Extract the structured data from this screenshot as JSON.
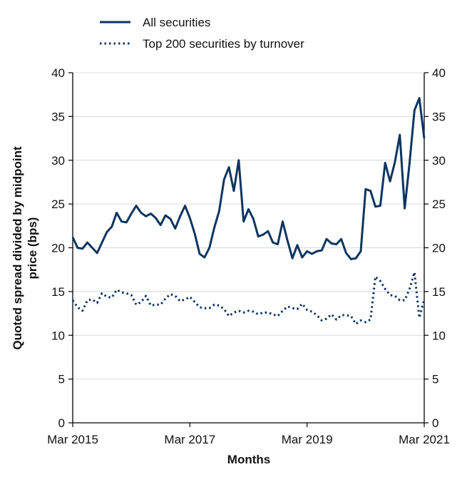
{
  "chart_data": {
    "type": "line",
    "xlabel": "Months",
    "ylabel_lines": [
      "Quoted spread divided by midpoint",
      "price (bps)"
    ],
    "ylim": [
      0,
      40
    ],
    "yticks": [
      0,
      5,
      10,
      15,
      20,
      25,
      30,
      35,
      40
    ],
    "xlim": [
      "2015-03",
      "2021-03"
    ],
    "xticks": [
      "Mar 2015",
      "Mar 2017",
      "Mar 2019",
      "Mar 2021"
    ],
    "grid": "horizontal",
    "right_axis": true,
    "legend_position": "top",
    "colors": {
      "line": "#0d3561",
      "grid": "#d9d9d9",
      "axis": "#000000"
    },
    "x": [
      "2015-03",
      "2015-04",
      "2015-05",
      "2015-06",
      "2015-07",
      "2015-08",
      "2015-09",
      "2015-10",
      "2015-11",
      "2015-12",
      "2016-01",
      "2016-02",
      "2016-03",
      "2016-04",
      "2016-05",
      "2016-06",
      "2016-07",
      "2016-08",
      "2016-09",
      "2016-10",
      "2016-11",
      "2016-12",
      "2017-01",
      "2017-02",
      "2017-03",
      "2017-04",
      "2017-05",
      "2017-06",
      "2017-07",
      "2017-08",
      "2017-09",
      "2017-10",
      "2017-11",
      "2017-12",
      "2018-01",
      "2018-02",
      "2018-03",
      "2018-04",
      "2018-05",
      "2018-06",
      "2018-07",
      "2018-08",
      "2018-09",
      "2018-10",
      "2018-11",
      "2018-12",
      "2019-01",
      "2019-02",
      "2019-03",
      "2019-04",
      "2019-05",
      "2019-06",
      "2019-07",
      "2019-08",
      "2019-09",
      "2019-10",
      "2019-11",
      "2019-12",
      "2020-01",
      "2020-02",
      "2020-03",
      "2020-04",
      "2020-05",
      "2020-06",
      "2020-07",
      "2020-08",
      "2020-09",
      "2020-10",
      "2020-11",
      "2020-12",
      "2021-01",
      "2021-02",
      "2021-03"
    ],
    "series": [
      {
        "name": "All securities",
        "style": "solid",
        "values": [
          21.2,
          20.0,
          19.9,
          20.6,
          20.0,
          19.4,
          20.6,
          21.8,
          22.4,
          24.0,
          23.0,
          22.9,
          23.9,
          24.8,
          24.0,
          23.6,
          23.9,
          23.4,
          22.6,
          23.7,
          23.3,
          22.2,
          23.6,
          24.8,
          23.4,
          21.6,
          19.3,
          18.9,
          20.0,
          22.3,
          24.2,
          27.8,
          29.2,
          26.5,
          30.0,
          23.0,
          24.4,
          23.3,
          21.3,
          21.5,
          21.9,
          20.6,
          20.4,
          23.0,
          20.8,
          18.8,
          20.3,
          18.9,
          19.6,
          19.3,
          19.6,
          19.7,
          21.0,
          20.5,
          20.4,
          21.0,
          19.4,
          18.7,
          18.8,
          19.6,
          26.7,
          26.5,
          24.7,
          24.8,
          29.7,
          27.6,
          29.8,
          32.9,
          24.5,
          29.7,
          35.7,
          37.1,
          32.5
        ]
      },
      {
        "name": "Top 200 securities by turnover",
        "style": "dotted",
        "values": [
          14.0,
          13.2,
          12.8,
          14.0,
          14.1,
          13.7,
          14.8,
          14.4,
          14.3,
          15.2,
          14.9,
          14.8,
          14.6,
          13.5,
          13.8,
          14.5,
          13.4,
          13.5,
          13.5,
          14.2,
          14.7,
          14.5,
          13.9,
          14.1,
          14.4,
          13.8,
          13.2,
          13.1,
          13.1,
          13.5,
          13.4,
          13.0,
          12.2,
          12.6,
          12.8,
          12.6,
          12.8,
          12.7,
          12.4,
          12.6,
          12.6,
          12.4,
          12.2,
          12.8,
          13.3,
          13.1,
          13.0,
          13.6,
          12.9,
          12.7,
          12.3,
          11.7,
          11.9,
          12.4,
          11.8,
          12.3,
          12.3,
          12.2,
          11.3,
          11.7,
          11.5,
          11.8,
          16.7,
          16.2,
          15.3,
          14.6,
          14.5,
          14.0,
          14.0,
          15.3,
          17.2,
          12.0,
          14.1
        ]
      }
    ]
  }
}
